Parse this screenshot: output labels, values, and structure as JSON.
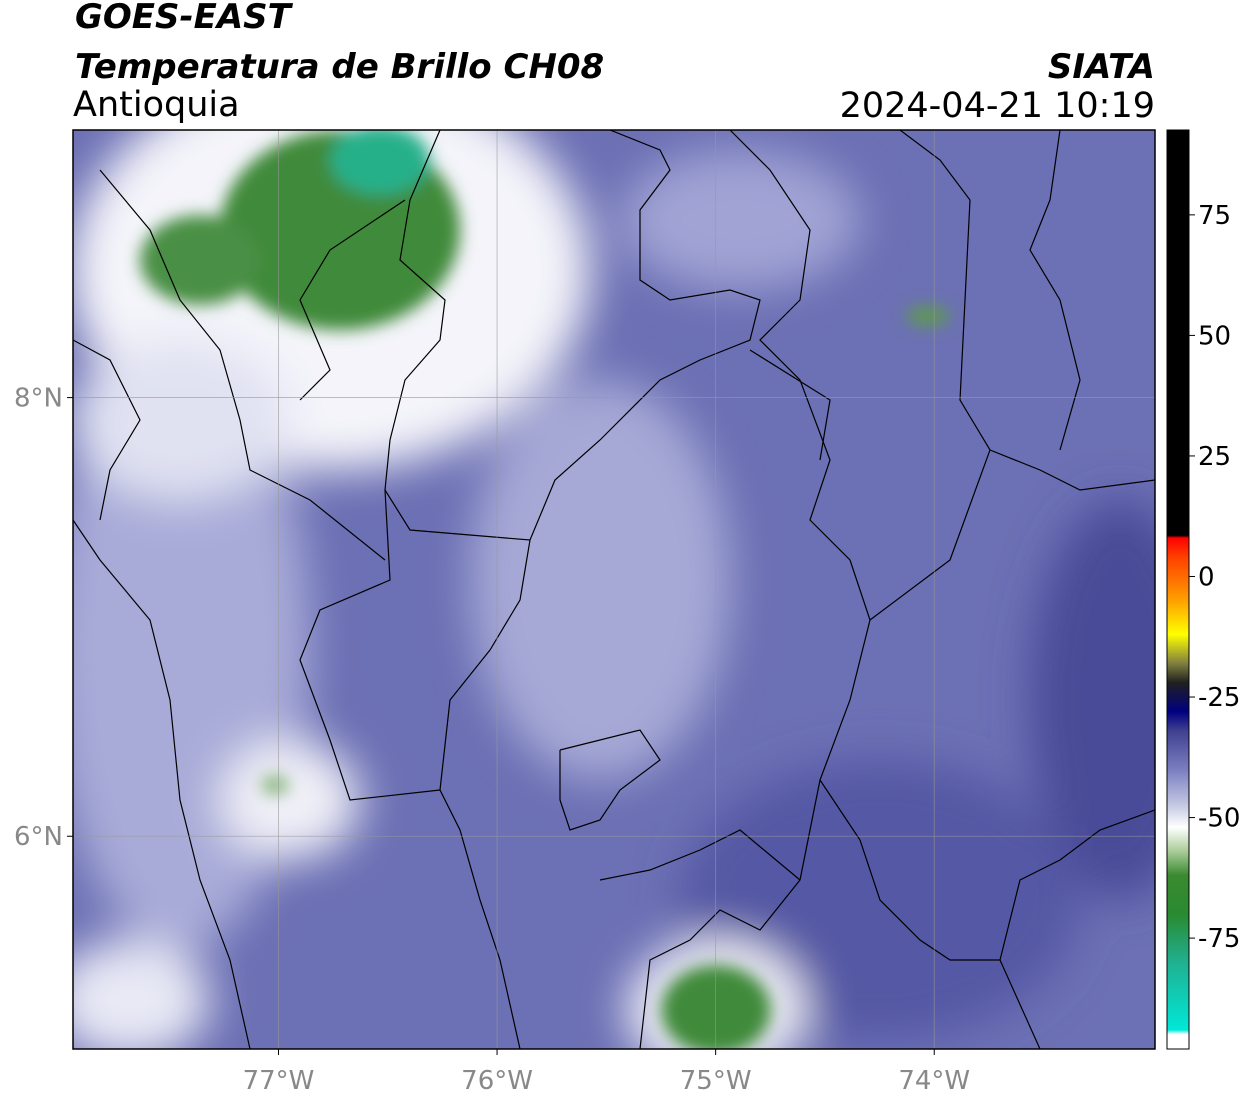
{
  "header": {
    "satellite": "GOES-EAST",
    "product": "Temperatura de Brillo CH08",
    "region": "Antioquia",
    "source": "SIATA",
    "datetime": "2024-04-21 10:19"
  },
  "map": {
    "xlim": [
      -77.94,
      -72.99
    ],
    "ylim": [
      5.03,
      9.22
    ],
    "xticks": [
      {
        "value": -77,
        "label": "77°W"
      },
      {
        "value": -76,
        "label": "76°W"
      },
      {
        "value": -75,
        "label": "75°W"
      },
      {
        "value": -74,
        "label": "74°W"
      }
    ],
    "yticks": [
      {
        "value": 6,
        "label": "6°N"
      },
      {
        "value": 8,
        "label": "8°N"
      }
    ],
    "grid": true
  },
  "colorbar": {
    "lim": [
      -98,
      92.6
    ],
    "ticks": [
      -75,
      -50,
      -25,
      0,
      25,
      50,
      75
    ],
    "stops": [
      {
        "value": -98,
        "color": "#ffffff"
      },
      {
        "value": -95,
        "color": "#ffffff"
      },
      {
        "value": -94,
        "color": "#00e8d8"
      },
      {
        "value": -80,
        "color": "#20b090"
      },
      {
        "value": -70,
        "color": "#2a8a30"
      },
      {
        "value": -62,
        "color": "#3a8a30"
      },
      {
        "value": -57,
        "color": "#a8cc98"
      },
      {
        "value": -52,
        "color": "#ffffff"
      },
      {
        "value": -47,
        "color": "#c0c4e0"
      },
      {
        "value": -40,
        "color": "#7a7ec0"
      },
      {
        "value": -32,
        "color": "#404090"
      },
      {
        "value": -28,
        "color": "#000080"
      },
      {
        "value": -22,
        "color": "#202020"
      },
      {
        "value": -18,
        "color": "#808040"
      },
      {
        "value": -12,
        "color": "#ffff00"
      },
      {
        "value": -5,
        "color": "#ffa000"
      },
      {
        "value": 4,
        "color": "#ff4000"
      },
      {
        "value": 8,
        "color": "#ff0000"
      },
      {
        "value": 8.5,
        "color": "#000000"
      },
      {
        "value": 92.6,
        "color": "#000000"
      }
    ]
  }
}
